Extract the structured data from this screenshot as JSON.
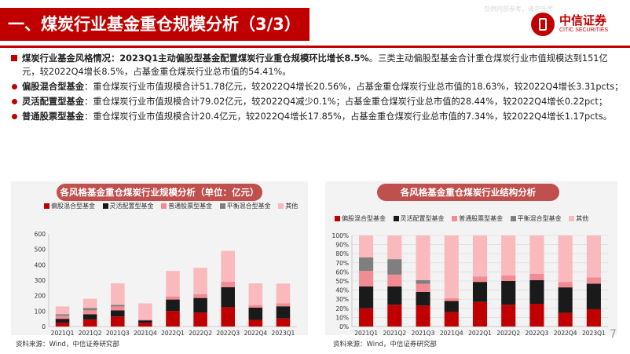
{
  "header": {
    "title": "一、煤炭行业基金重仓规模分析（3/3）",
    "watermark": "仅供内部参考，请勿外传",
    "logo_cn": "中信证券",
    "logo_en": "CITIC SECURITIES"
  },
  "bullets": [
    {
      "lead": "煤炭行业基金风格情况",
      "text_bold": "：2023Q1主动偏股型基金配置煤炭行业重仓规模环比增长8.5%",
      "text": "。三类主动偏股型基金合计重仓煤炭行业市值规模达到151亿元，较2022Q4增长8.5%，占基金重仓煤炭行业总市值的54.41%。"
    },
    {
      "lead": "偏股混合型基金",
      "text": "：重仓煤炭行业市值规模合计51.78亿元，较2022Q4增长20.56%，占基金重仓煤炭行业总市值的18.63%，较2022Q4增长3.31pcts；"
    },
    {
      "lead": "灵活配置型基金",
      "text": "：重仓煤炭行业市值规模合计79.02亿元，较2022Q4减少0.1%；占基金重仓煤炭行业总市值的28.44%，较2022Q4增长0.22pct；"
    },
    {
      "lead": "普通股票型基金",
      "text": "：重仓煤炭行业市值规模合计20.4亿元，较2022Q4增长17.85%，占基金重仓煤炭行业总市值的7.34%，较2022Q4增长1.17pcts。"
    }
  ],
  "colors": {
    "brand": "#c00000",
    "series": [
      "#c00000",
      "#1a1a1a",
      "#f28b93",
      "#7f7f7f",
      "#f9b9bd"
    ]
  },
  "chart_data": [
    {
      "type": "bar",
      "stacked": true,
      "title": "各风格基金重仓煤炭行业规模分析（单位：亿元）",
      "categories": [
        "2021Q1",
        "2021Q2",
        "2021Q3",
        "2021Q4",
        "2022Q1",
        "2022Q2",
        "2022Q3",
        "2022Q4",
        "2023Q1"
      ],
      "series": [
        {
          "name": "偏股混合型基金",
          "values": [
            25,
            45,
            65,
            25,
            100,
            90,
            125,
            43,
            52
          ]
        },
        {
          "name": "灵活配置型基金",
          "values": [
            25,
            35,
            40,
            15,
            75,
            95,
            130,
            79,
            79
          ]
        },
        {
          "name": "普通股票型基金",
          "values": [
            20,
            25,
            25,
            5,
            20,
            25,
            35,
            17,
            20
          ]
        },
        {
          "name": "平衡混合型基金",
          "values": [
            10,
            15,
            10,
            0,
            0,
            0,
            0,
            0,
            0
          ]
        },
        {
          "name": "其他",
          "values": [
            50,
            60,
            140,
            105,
            165,
            170,
            200,
            140,
            127
          ]
        }
      ],
      "ylim": [
        0,
        600
      ],
      "yticks": [
        0,
        100,
        200,
        300,
        400,
        500,
        600
      ],
      "grid": false,
      "legend": "top"
    },
    {
      "type": "bar",
      "stacked": true,
      "percent": true,
      "title": "各风格基金重仓煤炭行业结构分析",
      "categories": [
        "2021Q1",
        "2021Q2",
        "2021Q3",
        "2021Q4",
        "2022Q1",
        "2022Q2",
        "2022Q3",
        "2022Q4",
        "2023Q1"
      ],
      "series": [
        {
          "name": "偏股混合型基金",
          "values": [
            20,
            24,
            23,
            16,
            27,
            24,
            25,
            15,
            19
          ]
        },
        {
          "name": "灵活配置型基金",
          "values": [
            24,
            20,
            15,
            12,
            22,
            26,
            26,
            28,
            28
          ]
        },
        {
          "name": "普通股票型基金",
          "values": [
            17,
            13,
            9,
            3,
            6,
            6,
            7,
            6,
            7
          ]
        },
        {
          "name": "平衡混合型基金",
          "values": [
            15,
            17,
            4,
            0,
            0,
            0,
            0,
            0,
            0
          ]
        },
        {
          "name": "其他",
          "values": [
            24,
            26,
            49,
            69,
            45,
            44,
            42,
            51,
            46
          ]
        }
      ],
      "ylim": [
        0,
        100
      ],
      "yticks": [
        "0%",
        "10%",
        "20%",
        "30%",
        "40%",
        "50%",
        "60%",
        "70%",
        "80%",
        "90%",
        "100%"
      ],
      "grid": true,
      "legend": "top"
    }
  ],
  "sources": [
    "资料来源：Wind，中信证券研究部",
    "资料来源：Wind，中信证券研究部"
  ],
  "page_number": "7"
}
